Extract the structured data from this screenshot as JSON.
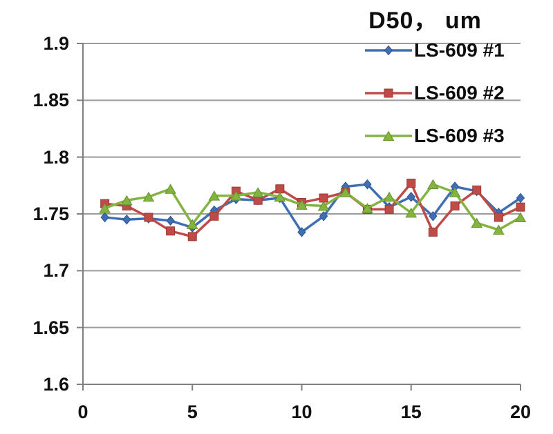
{
  "title": "D50， um",
  "chart_data": {
    "type": "line",
    "title": "D50， um",
    "xlabel": "",
    "ylabel": "",
    "xlim": [
      0,
      20
    ],
    "ylim": [
      1.6,
      1.9
    ],
    "x_ticks": [
      0,
      5,
      10,
      15,
      20
    ],
    "y_ticks": [
      1.9,
      1.85,
      1.8,
      1.75,
      1.7,
      1.65,
      1.6
    ],
    "y_tick_labels": [
      "1.9",
      "1.85",
      "1.8",
      "1.75",
      "1.7",
      "1.65",
      "1.6"
    ],
    "grid": true,
    "legend_position": "top-right",
    "x": [
      1,
      2,
      3,
      4,
      5,
      6,
      7,
      8,
      9,
      10,
      11,
      12,
      13,
      14,
      15,
      16,
      17,
      18,
      19,
      20
    ],
    "series": [
      {
        "name": "LS-609 #1",
        "marker": "diamond",
        "color": "#3e6fb5",
        "edge_color": "#2d5590",
        "values": [
          1.747,
          1.745,
          1.746,
          1.744,
          1.738,
          1.753,
          1.763,
          1.762,
          1.764,
          1.734,
          1.748,
          1.774,
          1.776,
          1.756,
          1.765,
          1.748,
          1.774,
          1.77,
          1.751,
          1.764
        ]
      },
      {
        "name": "LS-609 #2",
        "marker": "square",
        "color": "#bf4b47",
        "edge_color": "#9c3936",
        "values": [
          1.759,
          1.757,
          1.747,
          1.735,
          1.73,
          1.748,
          1.77,
          1.762,
          1.772,
          1.76,
          1.764,
          1.769,
          1.754,
          1.754,
          1.777,
          1.734,
          1.757,
          1.771,
          1.747,
          1.756
        ]
      },
      {
        "name": "LS-609 #3",
        "marker": "triangle",
        "color": "#84b440",
        "edge_color": "#689230",
        "values": [
          1.755,
          1.762,
          1.765,
          1.772,
          1.741,
          1.766,
          1.766,
          1.769,
          1.765,
          1.758,
          1.757,
          1.769,
          1.755,
          1.765,
          1.751,
          1.776,
          1.769,
          1.742,
          1.736,
          1.747
        ]
      }
    ],
    "style": {
      "grid_color": "#9b9b9b",
      "axis_color": "#7f7f7f",
      "line_width": 3.5
    }
  },
  "layout_note": "static chart image"
}
